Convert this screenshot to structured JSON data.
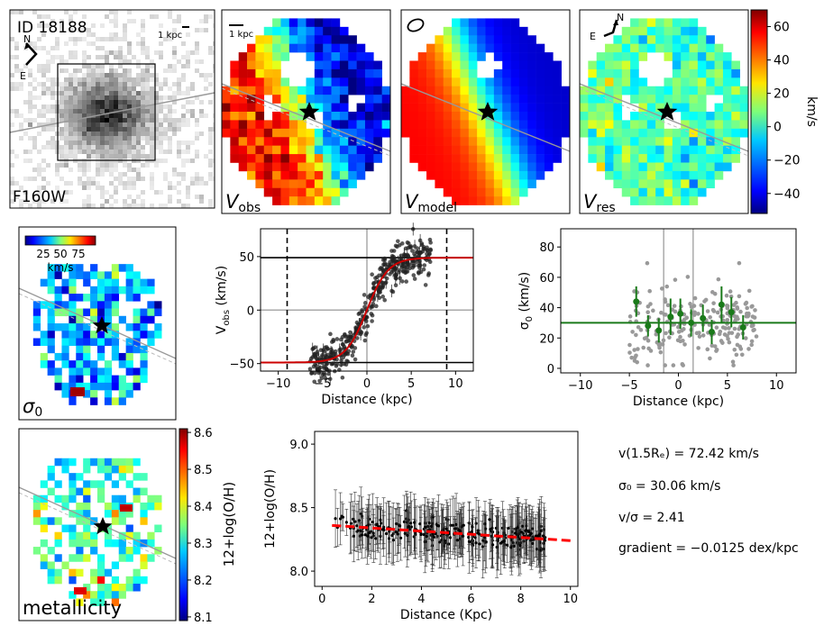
{
  "header": {
    "galaxy_id": "ID 18188",
    "filter": "F160W",
    "scale_label": "1 kpc"
  },
  "compass": {
    "north": "N",
    "east": "E"
  },
  "panels": {
    "vobs": {
      "main": "V",
      "sub": "obs"
    },
    "vmodel": {
      "main": "V",
      "sub": "model"
    },
    "vres": {
      "main": "V",
      "sub": "res"
    },
    "sigma": {
      "main": "σ",
      "sub": "0"
    },
    "metal": {
      "label": "metallicity"
    }
  },
  "colorbars": {
    "velocity": {
      "label": "km/s",
      "ticks": [
        "60",
        "40",
        "20",
        "0",
        "−20",
        "−40"
      ],
      "min": -52,
      "max": 70,
      "tick_values": [
        60,
        40,
        20,
        0,
        -20,
        -40
      ]
    },
    "sigma": {
      "label": "km/s",
      "ticks": [
        "25",
        "50",
        "75"
      ],
      "min": 0,
      "max": 100,
      "tick_values": [
        25,
        50,
        75
      ]
    },
    "metallicity": {
      "label": "12+log(O/H)",
      "ticks": [
        "8.6",
        "8.5",
        "8.4",
        "8.3",
        "8.2",
        "8.1"
      ],
      "min": 8.09,
      "max": 8.61,
      "tick_values": [
        8.6,
        8.5,
        8.4,
        8.3,
        8.2,
        8.1
      ]
    }
  },
  "stats": {
    "vel": "v(1.5Rₑ) = 72.42 km/s",
    "sigma": "σ₀ = 30.06 km/s",
    "ratio": "v/σ = 2.41",
    "gradient": "gradient = −0.0125 dex/kpc"
  },
  "chart_data": [
    {
      "type": "scatter",
      "name": "rotation-curve",
      "xlabel": "Distance (kpc)",
      "ylabel": "V_obs (km/s)",
      "xlim": [
        -12,
        12
      ],
      "ylim": [
        -57,
        76
      ],
      "xticks": [
        -10,
        -5,
        0,
        5,
        10
      ],
      "yticks": [
        -50,
        0,
        50
      ],
      "x_tick_labels": [
        "−10",
        "−5",
        "0",
        "5",
        "10"
      ],
      "y_tick_labels": [
        "−50",
        "0",
        "50"
      ],
      "model": {
        "vmax": 49,
        "rt": 2.4,
        "color": "#cc0000"
      },
      "hlines": [
        49,
        -49,
        0
      ],
      "vlines_dashed": [
        -9,
        9
      ],
      "vlines_solid": [
        0
      ],
      "points": {
        "n": 420,
        "xrange": [
          -6.5,
          7.2
        ],
        "scatter": 9
      }
    },
    {
      "type": "scatter",
      "name": "dispersion-profile",
      "xlabel": "Distance (kpc)",
      "ylabel": "σ_0 (km/s)",
      "xlim": [
        -12,
        12
      ],
      "ylim": [
        -3,
        92
      ],
      "xticks": [
        -10,
        -5,
        0,
        5,
        10
      ],
      "yticks": [
        0,
        20,
        40,
        60,
        80
      ],
      "x_tick_labels": [
        "−10",
        "−5",
        "0",
        "5",
        "10"
      ],
      "y_tick_labels": [
        "0",
        "20",
        "40",
        "60",
        "80"
      ],
      "mean_sigma": 30.06,
      "vlines": [
        -1.5,
        1.5
      ],
      "binned": [
        {
          "x": -4.3,
          "y": 44,
          "err": 10
        },
        {
          "x": -3.1,
          "y": 28,
          "err": 7
        },
        {
          "x": -2.0,
          "y": 25,
          "err": 8
        },
        {
          "x": -0.8,
          "y": 34,
          "err": 12
        },
        {
          "x": 0.2,
          "y": 36,
          "err": 10
        },
        {
          "x": 1.3,
          "y": 30,
          "err": 9
        },
        {
          "x": 2.5,
          "y": 33,
          "err": 9
        },
        {
          "x": 3.4,
          "y": 24,
          "err": 8
        },
        {
          "x": 4.4,
          "y": 42,
          "err": 12
        },
        {
          "x": 5.4,
          "y": 37,
          "err": 10
        },
        {
          "x": 6.6,
          "y": 27,
          "err": 8
        }
      ],
      "points": {
        "n": 230,
        "xrange": [
          -5,
          8
        ],
        "center": 30,
        "scatter": 14
      }
    },
    {
      "type": "scatter",
      "name": "metallicity-gradient",
      "xlabel": "Distance (Kpc)",
      "ylabel": "12+log(O/H)",
      "xlim": [
        -0.3,
        10.3
      ],
      "ylim": [
        7.88,
        9.1
      ],
      "xticks": [
        0,
        2,
        4,
        6,
        8,
        10
      ],
      "yticks": [
        8.0,
        8.5,
        9.0
      ],
      "x_tick_labels": [
        "0",
        "2",
        "4",
        "6",
        "8",
        "10"
      ],
      "y_tick_labels": [
        "8.0",
        "8.5",
        "9.0"
      ],
      "fit": {
        "x0": 0.4,
        "x1": 10.0,
        "y0": 8.365,
        "slope": -0.0125,
        "color": "#ff0000"
      },
      "points": {
        "n": 300,
        "xrange": [
          0.5,
          9.0
        ],
        "scatter": 0.05,
        "err": [
          0.1,
          0.25
        ]
      }
    }
  ]
}
